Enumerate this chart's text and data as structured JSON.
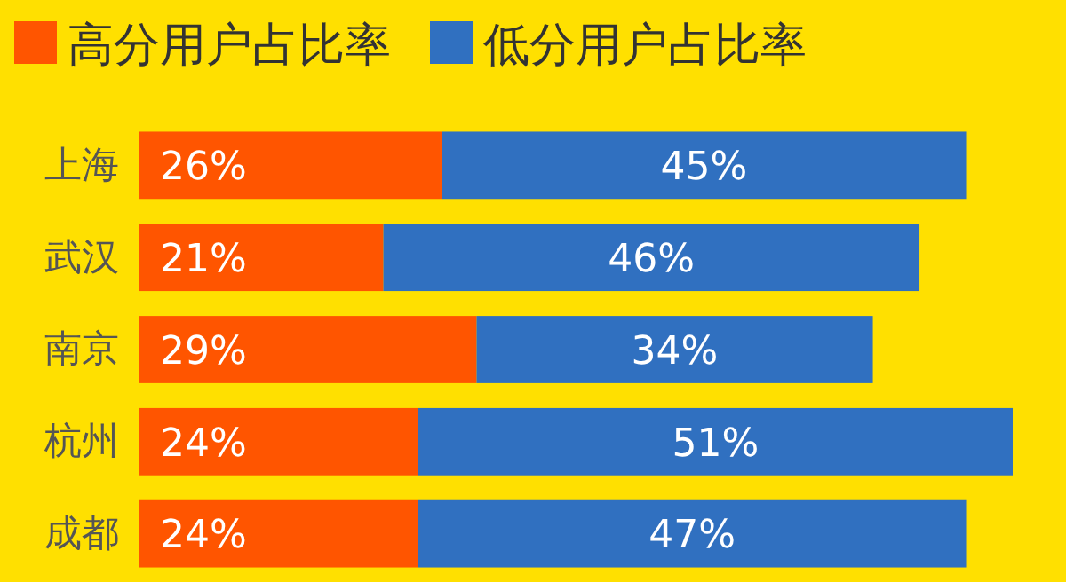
{
  "chart_data": {
    "type": "bar",
    "orientation": "horizontal",
    "stacked": true,
    "categories": [
      "上海",
      "武汉",
      "南京",
      "杭州",
      "成都"
    ],
    "series": [
      {
        "name": "高分用户占比率",
        "color": "#ff5500",
        "values": [
          26,
          21,
          29,
          24,
          24
        ],
        "value_labels": [
          "26%",
          "21%",
          "29%",
          "24%",
          "24%"
        ]
      },
      {
        "name": "低分用户占比率",
        "color": "#3070c0",
        "values": [
          45,
          46,
          34,
          51,
          47
        ],
        "value_labels": [
          "45%",
          "46%",
          "34%",
          "51%",
          "47%"
        ]
      }
    ],
    "tick_labels": "y",
    "legend": "top left"
  }
}
